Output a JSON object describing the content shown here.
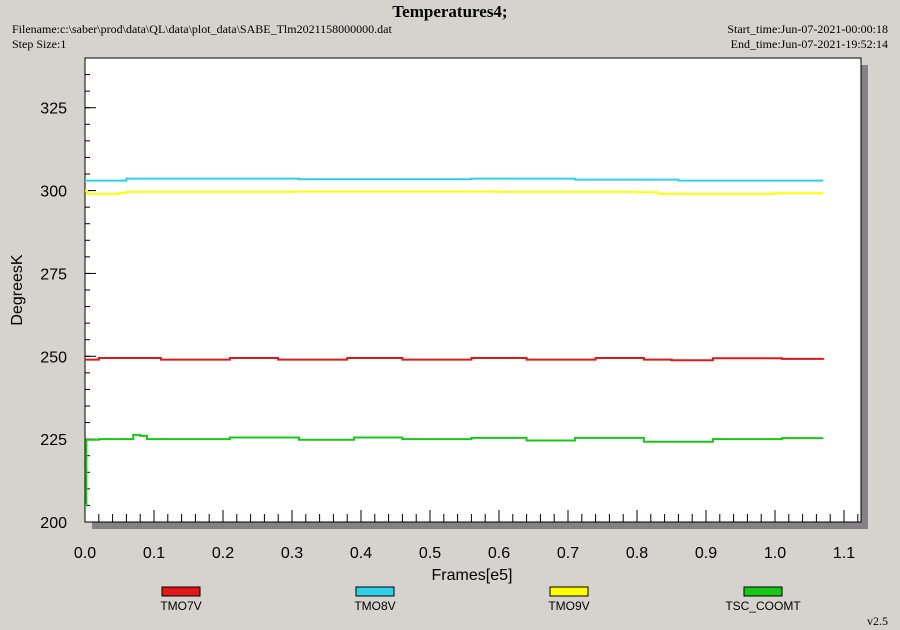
{
  "header": {
    "title": "Temperatures4;",
    "filename": "Filename:c:\\saber\\prod\\data\\QL\\data\\plot_data\\SABE_Tlm2021158000000.dat",
    "step_size": "Step Size:1",
    "start_time": "Start_time:Jun-07-2021-00:00:18",
    "end_time": "End_time:Jun-07-2021-19:52:14"
  },
  "footer": {
    "version": "v2.5"
  },
  "chart_data": {
    "type": "line",
    "title": "Temperatures4;",
    "xlabel": "Frames[e5]",
    "ylabel": "DegreesK",
    "xlim": [
      0,
      1.13
    ],
    "ylim": [
      200,
      340
    ],
    "xticks": [
      0.0,
      0.1,
      0.2,
      0.3,
      0.4,
      0.5,
      0.6,
      0.7,
      0.8,
      0.9,
      1.0,
      1.1
    ],
    "xtick_labels": [
      "0.0",
      "0.1",
      "0.2",
      "0.3",
      "0.4",
      "0.5",
      "0.6",
      "0.7",
      "0.8",
      "0.9",
      "1.0",
      "1.1"
    ],
    "yticks": [
      200,
      225,
      250,
      275,
      300,
      325
    ],
    "ytick_labels": [
      "200",
      "225",
      "250",
      "275",
      "300",
      "325"
    ],
    "grid": false,
    "legend_position": "bottom",
    "series": [
      {
        "name": "TMO7V",
        "color": "#e01818",
        "x": [
          0.0,
          0.02,
          0.1,
          0.11,
          0.2,
          0.21,
          0.27,
          0.28,
          0.37,
          0.38,
          0.45,
          0.46,
          0.55,
          0.56,
          0.63,
          0.64,
          0.73,
          0.74,
          0.8,
          0.81,
          0.84,
          0.85,
          0.9,
          0.91,
          1.0,
          1.01,
          1.07
        ],
        "values": [
          249,
          249.5,
          249.5,
          249,
          249,
          249.5,
          249.5,
          249,
          249,
          249.5,
          249.5,
          249,
          249,
          249.5,
          249.5,
          249,
          249,
          249.5,
          249.5,
          249,
          249,
          248.8,
          248.8,
          249.4,
          249.4,
          249.2,
          249.4
        ]
      },
      {
        "name": "TMO8V",
        "color": "#30d0e8",
        "x": [
          0.0,
          0.05,
          0.06,
          0.3,
          0.31,
          0.55,
          0.56,
          0.7,
          0.71,
          0.85,
          0.86,
          1.07
        ],
        "values": [
          303,
          303,
          303.6,
          303.6,
          303.4,
          303.4,
          303.6,
          303.6,
          303.3,
          303.3,
          303,
          303
        ]
      },
      {
        "name": "TMO9V",
        "color": "#ffff00",
        "x": [
          0.0,
          0.003,
          0.01,
          0.05,
          0.06,
          0.2,
          0.3,
          0.4,
          0.5,
          0.6,
          0.7,
          0.8,
          0.83,
          0.9,
          1.0,
          1.07
        ],
        "values": [
          300,
          299,
          299,
          299.3,
          299.6,
          299.6,
          299.7,
          299.7,
          299.7,
          299.6,
          299.6,
          299.5,
          299,
          299,
          299.2,
          299.2
        ]
      },
      {
        "name": "TSC_COOMT",
        "color": "#18c818",
        "x": [
          0.0,
          0.002,
          0.02,
          0.06,
          0.07,
          0.08,
          0.09,
          0.2,
          0.21,
          0.3,
          0.31,
          0.38,
          0.39,
          0.45,
          0.46,
          0.55,
          0.56,
          0.63,
          0.64,
          0.7,
          0.71,
          0.8,
          0.81,
          0.9,
          0.91,
          1.0,
          1.01,
          1.07
        ],
        "values": [
          205,
          224.8,
          225,
          225,
          226.3,
          226,
          225,
          225,
          225.5,
          225.5,
          224.8,
          224.8,
          225.5,
          225.5,
          225,
          225,
          225.4,
          225.4,
          224.6,
          224.6,
          225.4,
          225.4,
          224.2,
          224.2,
          225,
          225,
          225.3,
          225.3
        ]
      }
    ]
  }
}
